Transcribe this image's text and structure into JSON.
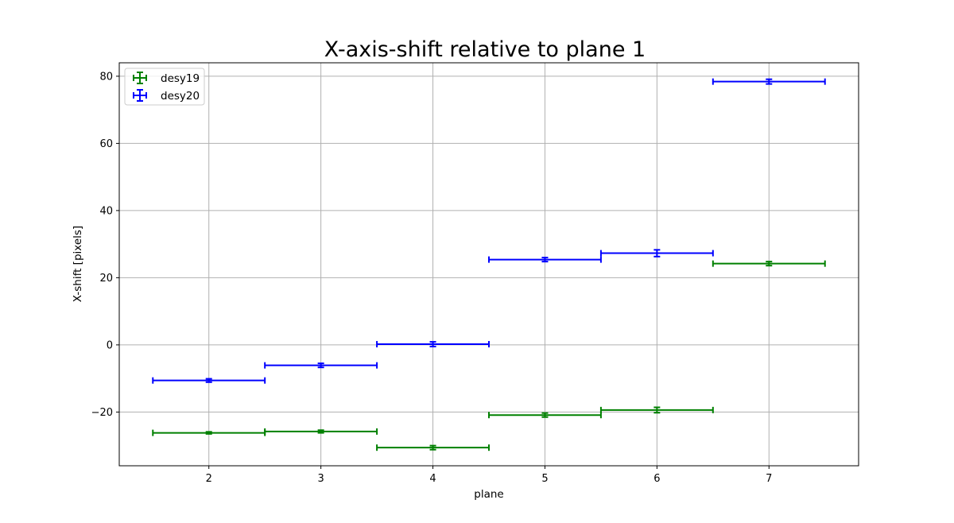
{
  "chart_data": {
    "type": "scatter",
    "title": "X-axis-shift relative to plane 1",
    "xlabel": "plane",
    "ylabel": "X-shift [pixels]",
    "xlim": [
      1.2,
      7.8
    ],
    "ylim": [
      -36,
      84
    ],
    "xticks": [
      2,
      3,
      4,
      5,
      6,
      7
    ],
    "yticks": [
      -20,
      0,
      20,
      40,
      60,
      80
    ],
    "grid": true,
    "legend_position": "top-left",
    "series": [
      {
        "name": "desy19",
        "color": "#008000",
        "marker": "errorbar",
        "x": [
          2,
          3,
          4,
          5,
          6,
          7
        ],
        "y": [
          -26.2,
          -25.8,
          -30.6,
          -20.9,
          -19.4,
          24.2
        ],
        "xerr": [
          0.5,
          0.5,
          0.5,
          0.5,
          0.5,
          0.5
        ],
        "yerr": [
          0.3,
          0.4,
          0.6,
          0.6,
          0.8,
          0.6
        ]
      },
      {
        "name": "desy20",
        "color": "#0000ff",
        "marker": "errorbar",
        "x": [
          2,
          3,
          4,
          5,
          6,
          7
        ],
        "y": [
          -10.6,
          -6.1,
          0.2,
          25.4,
          27.3,
          78.4
        ],
        "xerr": [
          0.5,
          0.5,
          0.5,
          0.5,
          0.5,
          0.5
        ],
        "yerr": [
          0.5,
          0.6,
          0.7,
          0.6,
          1.0,
          0.7
        ]
      }
    ]
  }
}
